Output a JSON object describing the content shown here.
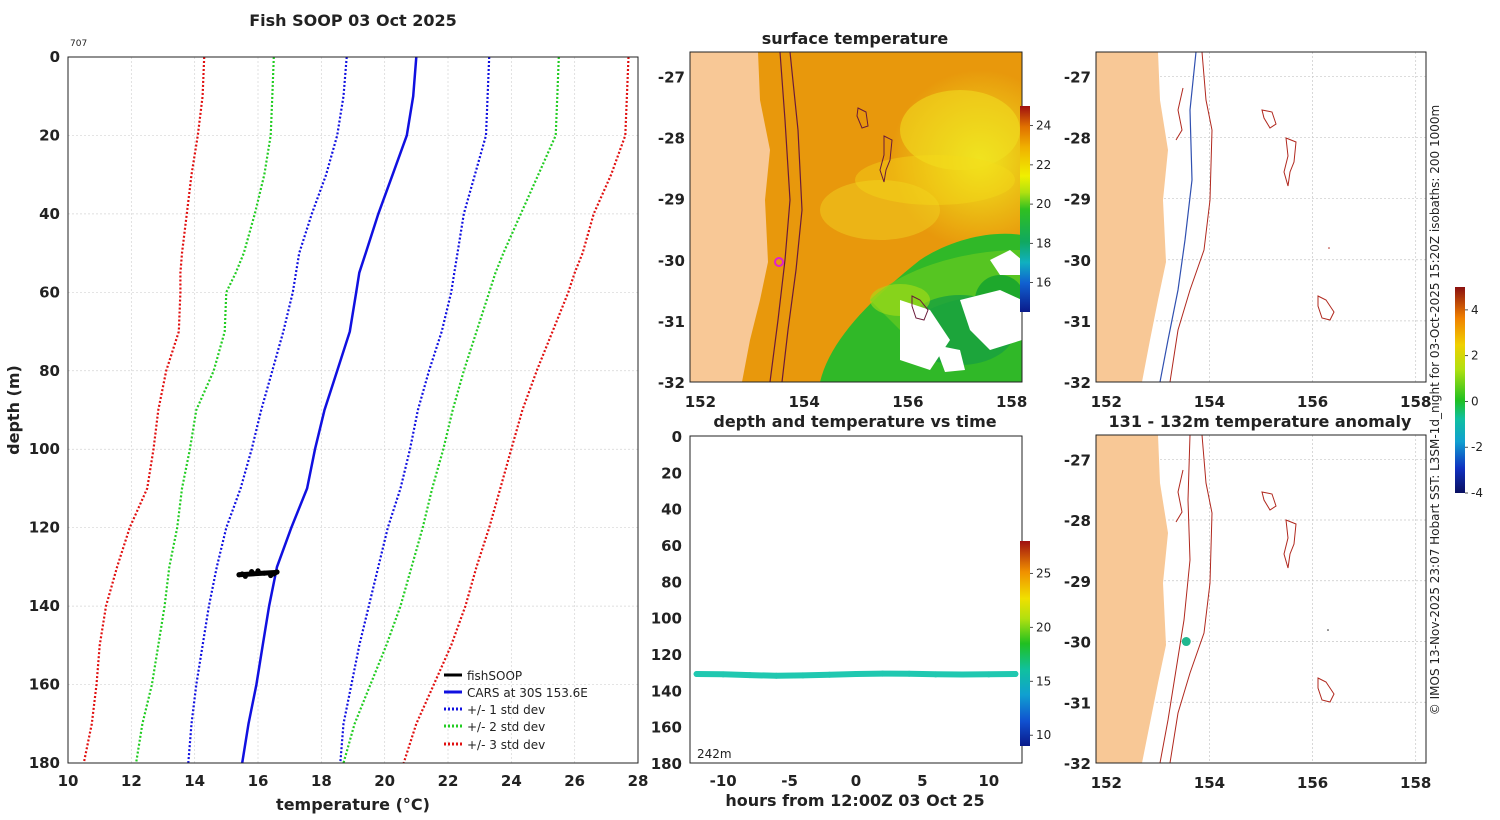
{
  "colors": {
    "land": "#f8c896",
    "cars": "#1010e0",
    "std1": "#1010e0",
    "std2": "#22cc22",
    "std3": "#e01010",
    "fish": "#000000",
    "isobath_red": "#b0281e",
    "isobath_blue": "#3050b0",
    "track": "#20c8b0",
    "marker_magenta": "#e020d0",
    "marker_green": "#20b890"
  },
  "chart_data": [
    {
      "id": "profile",
      "type": "line",
      "title": "Fish SOOP 03 Oct 2025",
      "corner_label": "707",
      "xlabel": "temperature (°C)",
      "ylabel": "depth (m)",
      "xlim": [
        10,
        28
      ],
      "ylim": [
        180,
        0
      ],
      "x_ticks": [
        10,
        12,
        14,
        16,
        18,
        20,
        22,
        24,
        26,
        28
      ],
      "y_ticks": [
        0,
        20,
        40,
        60,
        80,
        100,
        120,
        140,
        160,
        180
      ],
      "grid": true,
      "legend": {
        "placement": "bottom-right",
        "entries": [
          "fishSOOP",
          "CARS at 30S 153.6E",
          "+/- 1 std dev",
          "+/- 2 std dev",
          "+/- 3 std dev"
        ]
      },
      "depths": [
        0,
        10,
        20,
        30,
        40,
        50,
        55,
        60,
        70,
        80,
        90,
        100,
        110,
        120,
        130,
        140,
        150,
        160,
        170,
        180
      ],
      "series": [
        {
          "name": "CARS at 30S 153.6E",
          "style": "solid",
          "color_key": "cars",
          "values": [
            21.0,
            20.9,
            20.7,
            20.25,
            19.8,
            19.4,
            19.2,
            19.1,
            18.9,
            18.5,
            18.1,
            17.8,
            17.55,
            17.05,
            16.6,
            16.35,
            16.15,
            15.95,
            15.7,
            15.5
          ]
        },
        {
          "name": "+1 std dev",
          "style": "dotted",
          "color_key": "std1",
          "values": [
            23.3,
            23.25,
            23.2,
            22.85,
            22.5,
            22.3,
            22.2,
            22.1,
            21.8,
            21.4,
            21.05,
            20.8,
            20.5,
            20.1,
            19.8,
            19.5,
            19.2,
            18.95,
            18.7,
            18.6
          ]
        },
        {
          "name": "-1 std dev",
          "style": "dotted",
          "color_key": "std1",
          "values": [
            18.8,
            18.7,
            18.5,
            18.15,
            17.7,
            17.3,
            17.2,
            17.1,
            16.8,
            16.45,
            16.1,
            15.8,
            15.45,
            15.0,
            14.7,
            14.45,
            14.25,
            14.05,
            13.9,
            13.8
          ]
        },
        {
          "name": "+2 std dev",
          "style": "dotted",
          "color_key": "std2",
          "values": [
            25.5,
            25.45,
            25.4,
            24.85,
            24.3,
            23.75,
            23.5,
            23.3,
            22.9,
            22.5,
            22.15,
            21.85,
            21.5,
            21.2,
            20.85,
            20.5,
            20.05,
            19.55,
            19.05,
            18.7
          ]
        },
        {
          "name": "-2 std dev",
          "style": "dotted",
          "color_key": "std2",
          "values": [
            16.5,
            16.45,
            16.4,
            16.2,
            15.9,
            15.55,
            15.3,
            15.0,
            14.95,
            14.6,
            14.05,
            13.85,
            13.6,
            13.45,
            13.2,
            13.05,
            12.85,
            12.65,
            12.35,
            12.15
          ]
        },
        {
          "name": "+3 std dev",
          "style": "dotted",
          "color_key": "std3",
          "values": [
            27.7,
            27.65,
            27.6,
            27.15,
            26.6,
            26.25,
            26.0,
            25.8,
            25.3,
            24.8,
            24.35,
            24.0,
            23.65,
            23.3,
            22.9,
            22.55,
            22.1,
            21.55,
            21.0,
            20.6
          ]
        },
        {
          "name": "-3 std dev",
          "style": "dotted",
          "color_key": "std3",
          "values": [
            14.3,
            14.25,
            14.1,
            13.9,
            13.75,
            13.6,
            13.55,
            13.55,
            13.5,
            13.1,
            12.85,
            12.7,
            12.5,
            11.95,
            11.55,
            11.2,
            11.0,
            10.9,
            10.75,
            10.5
          ]
        }
      ],
      "fishsoop": {
        "name": "fishSOOP",
        "points": [
          [
            15.4,
            132.0
          ],
          [
            15.8,
            131.2
          ],
          [
            16.2,
            131.6
          ],
          [
            16.6,
            131.3
          ],
          [
            15.5,
            131.8
          ],
          [
            16.0,
            131.0
          ],
          [
            16.4,
            132.2
          ],
          [
            15.6,
            132.4
          ],
          [
            16.5,
            131.8
          ]
        ]
      }
    },
    {
      "id": "sst_map",
      "type": "heatmap",
      "title": "surface temperature",
      "xlim": [
        151.8,
        158.2
      ],
      "ylim": [
        -32,
        -26.6
      ],
      "x_ticks": [
        152,
        154,
        156,
        158
      ],
      "y_ticks": [
        -27,
        -28,
        -29,
        -30,
        -31,
        -32
      ],
      "colorbar": {
        "range": [
          14.5,
          25
        ],
        "ticks": [
          16,
          18,
          20,
          22,
          24
        ]
      },
      "marker": {
        "lon": 153.6,
        "lat": -30.0
      }
    },
    {
      "id": "depth_time",
      "type": "scatter",
      "title": "depth and temperature vs time",
      "xlabel": "hours from 12:00Z 03 Oct 25",
      "xlim": [
        -12.5,
        12.5
      ],
      "ylim": [
        180,
        0
      ],
      "x_ticks": [
        -10,
        -5,
        0,
        5,
        10
      ],
      "y_ticks": [
        0,
        20,
        40,
        60,
        80,
        100,
        120,
        140,
        160,
        180
      ],
      "annotation": "242m",
      "colorbar": {
        "range": [
          9,
          28
        ],
        "ticks": [
          10,
          15,
          20,
          25
        ]
      },
      "hours": [
        -12,
        -10,
        -8,
        -6,
        -4,
        -2,
        0,
        2,
        4,
        6,
        8,
        10,
        12
      ],
      "depth": [
        131.0,
        131.2,
        131.6,
        132.0,
        131.8,
        131.4,
        131.0,
        130.8,
        130.9,
        131.2,
        131.3,
        131.2,
        131.0
      ],
      "temperature": [
        16.4,
        16.4,
        16.4,
        16.5,
        16.4,
        16.4,
        16.4,
        16.5,
        16.4,
        16.4,
        16.4,
        16.4,
        16.4
      ]
    },
    {
      "id": "isobath_map",
      "type": "other",
      "title": "",
      "xlim": [
        151.8,
        158.2
      ],
      "ylim": [
        -32,
        -26.6
      ],
      "x_ticks": [
        152,
        154,
        156,
        158
      ],
      "y_ticks": [
        -27,
        -28,
        -29,
        -30,
        -31,
        -32
      ],
      "isobaths": [
        "200",
        "1000m"
      ]
    },
    {
      "id": "anomaly_map",
      "type": "heatmap",
      "title": "131 - 132m temperature anomaly",
      "xlim": [
        151.8,
        158.2
      ],
      "ylim": [
        -32,
        -26.6
      ],
      "x_ticks": [
        152,
        154,
        156,
        158
      ],
      "y_ticks": [
        -27,
        -28,
        -29,
        -30,
        -31,
        -32
      ],
      "colorbar": {
        "range": [
          -4,
          5
        ],
        "ticks": [
          -4,
          -2,
          0,
          2,
          4
        ]
      },
      "point": {
        "lon": 153.55,
        "lat": -30.0,
        "anomaly": -0.4
      }
    }
  ],
  "credit": "© IMOS 13-Nov-2025 23:07 Hobart SST: L3SM-1d_night for 03-Oct-2025 15:20Z isobaths: 200  1000m"
}
